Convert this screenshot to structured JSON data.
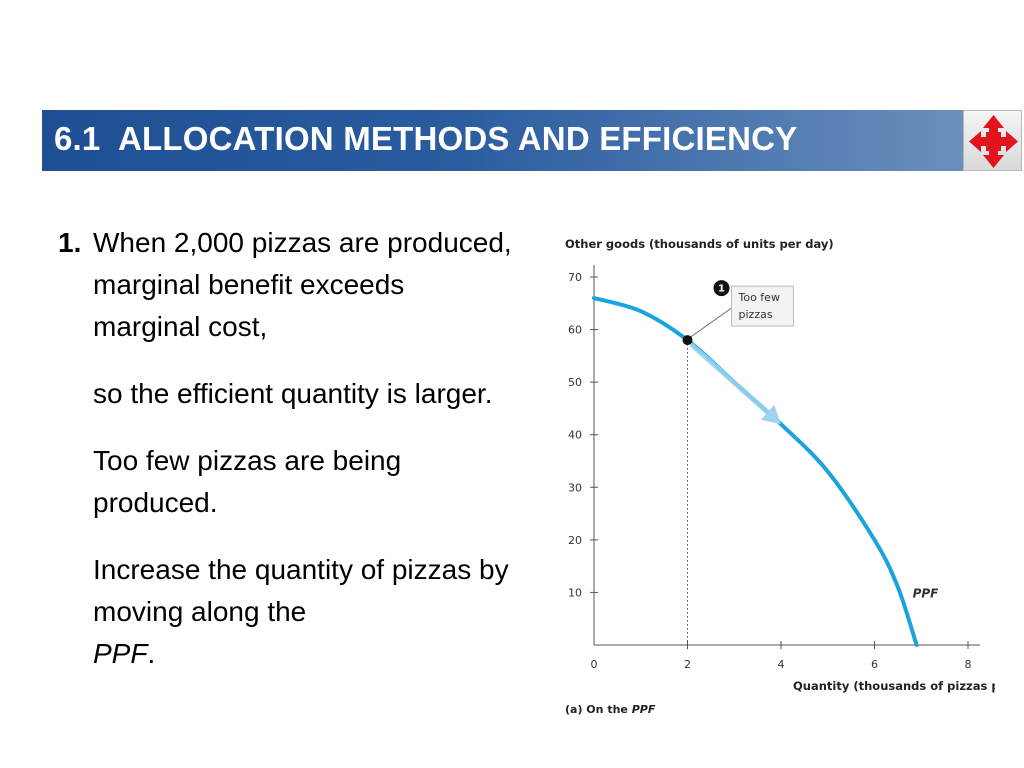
{
  "header": {
    "title": "6.1  ALLOCATION METHODS AND EFFICIENCY",
    "nav_icon": "four-arrows-icon",
    "title_color": "#1f4f93"
  },
  "body": {
    "item_number": "1.",
    "paragraphs": [
      "When 2,000 pizzas are produced, marginal benefit exceeds marginal cost,",
      "so the efficient quantity is larger.",
      "Too few pizzas are being produced."
    ],
    "last_paragraph_text": "Increase the quantity of pizzas by moving along the",
    "last_paragraph_italic": "PPF",
    "last_paragraph_end": "."
  },
  "chart_data": {
    "type": "line",
    "ylabel": "Other goods (thousands of units per day)",
    "xlabel": "Quantity (thousands of pizzas per day)",
    "caption_prefix": "(a) On the ",
    "caption_italic": "PPF",
    "xlim": [
      0,
      8
    ],
    "ylim": [
      0,
      70
    ],
    "x_ticks": [
      0,
      2,
      4,
      6,
      8
    ],
    "y_ticks": [
      10,
      20,
      30,
      40,
      50,
      60,
      70
    ],
    "series": [
      {
        "name": "PPF",
        "color": "#1aa3dd",
        "x": [
          0,
          1,
          2,
          3,
          4,
          5,
          6,
          6.5,
          6.9
        ],
        "y": [
          66,
          63.5,
          58,
          50,
          42,
          33,
          20,
          11,
          0
        ]
      }
    ],
    "point": {
      "x": 2,
      "y": 58,
      "marker": "1",
      "annotation": [
        "Too few",
        "pizzas"
      ]
    },
    "arrow": {
      "from": [
        2.1,
        57
      ],
      "to": [
        4,
        42
      ],
      "color": "#9fd3ee"
    },
    "grid": false
  }
}
